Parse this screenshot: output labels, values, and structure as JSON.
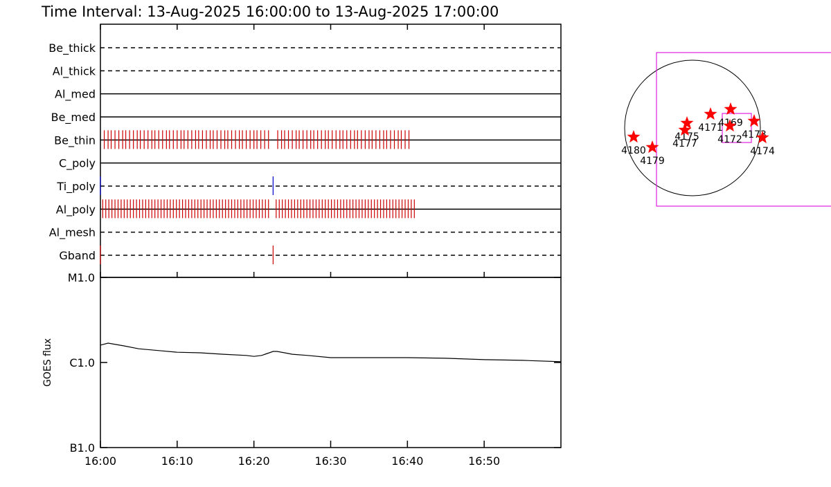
{
  "title": "Time Interval: 13-Aug-2025 16:00:00 to 13-Aug-2025 17:00:00",
  "chart_data": [
    {
      "type": "timeline",
      "categories": [
        "Be_thick",
        "Al_thick",
        "Al_med",
        "Be_med",
        "Be_thin",
        "C_poly",
        "Ti_poly",
        "Al_poly",
        "Al_mesh",
        "Gband"
      ],
      "line_styles": [
        "dashed",
        "dashed",
        "solid",
        "solid",
        "solid",
        "solid",
        "dashed",
        "solid",
        "dashed",
        "dashed"
      ],
      "colors": [
        "#cc0000",
        "#cc0000",
        "#cc0000",
        "#cc0000",
        "#cc0000",
        "#cc0000",
        "#0000cc",
        "#cc0000",
        "#cc0000",
        "#cc0000"
      ],
      "xlim": [
        0,
        60
      ],
      "events": [
        [],
        [],
        [],
        [],
        [
          0.5,
          1.0,
          1.4,
          1.9,
          2.4,
          2.9,
          3.3,
          3.8,
          4.3,
          4.8,
          5.2,
          5.7,
          6.2,
          6.7,
          7.1,
          7.6,
          8.1,
          8.6,
          9.0,
          9.5,
          10.0,
          10.5,
          10.9,
          11.4,
          11.9,
          12.4,
          12.8,
          13.3,
          13.8,
          14.3,
          14.7,
          15.2,
          15.7,
          16.2,
          16.6,
          17.1,
          17.6,
          18.1,
          18.5,
          19.0,
          19.5,
          20.0,
          20.4,
          20.9,
          21.4,
          21.9,
          23.1,
          23.6,
          24.0,
          24.5,
          25.0,
          25.5,
          25.9,
          26.4,
          26.9,
          27.4,
          27.8,
          28.3,
          28.8,
          29.3,
          29.7,
          30.2,
          30.7,
          31.2,
          31.6,
          32.1,
          32.6,
          33.1,
          33.5,
          34.0,
          34.5,
          35.0,
          35.4,
          35.9,
          36.4,
          36.9,
          37.3,
          37.8,
          38.3,
          38.8,
          39.2,
          39.7,
          40.2
        ],
        [],
        [
          0,
          22.5
        ],
        [
          0.3,
          0.7,
          1.1,
          1.5,
          1.9,
          2.3,
          2.7,
          3.1,
          3.5,
          3.9,
          4.3,
          4.7,
          5.1,
          5.5,
          5.9,
          6.3,
          6.7,
          7.1,
          7.5,
          7.9,
          8.3,
          8.7,
          9.1,
          9.5,
          9.9,
          10.3,
          10.7,
          11.1,
          11.5,
          11.9,
          12.3,
          12.7,
          13.1,
          13.5,
          13.9,
          14.3,
          14.7,
          15.1,
          15.5,
          15.9,
          16.3,
          16.7,
          17.1,
          17.5,
          17.9,
          18.3,
          18.7,
          19.1,
          19.5,
          19.9,
          20.3,
          20.7,
          21.1,
          21.5,
          21.9,
          22.9,
          23.3,
          23.7,
          24.1,
          24.5,
          24.9,
          25.3,
          25.7,
          26.1,
          26.5,
          26.9,
          27.3,
          27.7,
          28.1,
          28.5,
          28.9,
          29.3,
          29.7,
          30.1,
          30.5,
          30.9,
          31.3,
          31.7,
          32.1,
          32.5,
          32.9,
          33.3,
          33.7,
          34.1,
          34.5,
          34.9,
          35.3,
          35.7,
          36.1,
          36.5,
          36.9,
          37.3,
          37.7,
          38.1,
          38.5,
          38.9,
          39.3,
          39.7,
          40.1,
          40.5,
          40.9
        ],
        [],
        [
          0,
          22.5
        ]
      ]
    },
    {
      "type": "line",
      "ylabel": "GOES flux",
      "log_y": true,
      "color": "#000000",
      "x": [
        0,
        1,
        3,
        5,
        8,
        10,
        13,
        16,
        19,
        20,
        21,
        22,
        22.5,
        23,
        24,
        25,
        27,
        30,
        35,
        40,
        45,
        50,
        55,
        60
      ],
      "values": [
        1.6e-06,
        1.69e-06,
        1.57e-06,
        1.45e-06,
        1.37e-06,
        1.32e-06,
        1.3e-06,
        1.25e-06,
        1.21e-06,
        1.18e-06,
        1.21e-06,
        1.3e-06,
        1.35e-06,
        1.35e-06,
        1.3e-06,
        1.25e-06,
        1.21e-06,
        1.14e-06,
        1.14e-06,
        1.14e-06,
        1.12e-06,
        1.08e-06,
        1.06e-06,
        1.02e-06
      ],
      "xlim": [
        0,
        60
      ],
      "xticks": [
        {
          "value": 0,
          "label": "16:00"
        },
        {
          "value": 10,
          "label": "16:10"
        },
        {
          "value": 20,
          "label": "16:20"
        },
        {
          "value": 30,
          "label": "16:30"
        },
        {
          "value": 40,
          "label": "16:40"
        },
        {
          "value": 50,
          "label": "16:50"
        }
      ],
      "ylim": [
        1e-07,
        1e-05
      ],
      "yticks": [
        {
          "value": 1e-05,
          "label": "M1.0"
        },
        {
          "value": 1e-06,
          "label": "C1.0"
        },
        {
          "value": 1e-07,
          "label": "B1.0"
        }
      ]
    },
    {
      "type": "scatter",
      "color": "#ff0000",
      "labels": [
        "4180",
        "4179",
        "4175",
        "4177",
        "4171",
        "4169",
        "4172",
        "4173",
        "4174"
      ],
      "x": [
        -833,
        -568,
        -78,
        -108,
        255,
        539,
        529,
        872,
        990
      ],
      "y": [
        -127,
        -274,
        69,
        -29,
        196,
        265,
        29,
        98,
        -137
      ]
    }
  ]
}
